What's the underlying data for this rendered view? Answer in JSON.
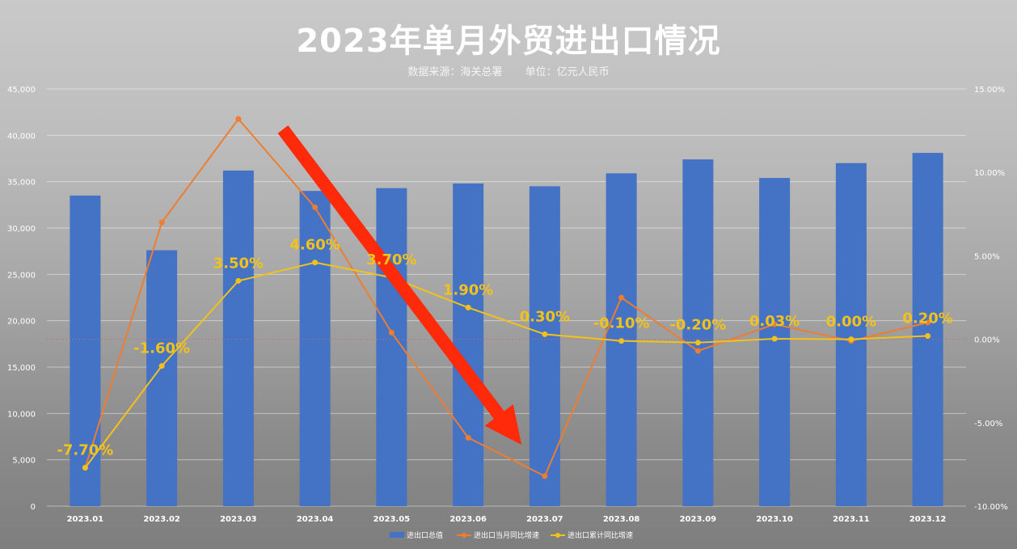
{
  "title": "2023年单月外贸进出口情况",
  "subtitle": {
    "source": "数据来源：海关总署",
    "unit": "单位：亿元人民币"
  },
  "colors": {
    "bar": "#4472c4",
    "monthly_line": "#ed7d31",
    "cumulative_line": "#f2c21b",
    "arrow": "#ff2a0a",
    "zero_line": "#e06060"
  },
  "chart_data": {
    "type": "bar",
    "categories": [
      "2023.01",
      "2023.02",
      "2023.03",
      "2023.04",
      "2023.05",
      "2023.06",
      "2023.07",
      "2023.08",
      "2023.09",
      "2023.10",
      "2023.11",
      "2023.12"
    ],
    "series": [
      {
        "name": "进出口总值",
        "type": "bar",
        "axis": "left",
        "values": [
          33500,
          27600,
          36200,
          34000,
          34300,
          34800,
          34500,
          35900,
          37400,
          35400,
          37000,
          38100
        ]
      },
      {
        "name": "进出口当月同比增速",
        "type": "line",
        "axis": "right",
        "values": [
          -7.7,
          7.0,
          13.2,
          7.9,
          0.4,
          -5.9,
          -8.2,
          2.5,
          -0.7,
          0.9,
          -0.1,
          1.0
        ]
      },
      {
        "name": "进出口累计同比增速",
        "type": "line",
        "axis": "right",
        "values": [
          -7.7,
          -1.6,
          3.5,
          4.6,
          3.7,
          1.9,
          0.3,
          -0.1,
          -0.2,
          0.03,
          0.0,
          0.2
        ],
        "labels": [
          "-7.70%",
          "-1.60%",
          "3.50%",
          "4.60%",
          "3.70%",
          "1.90%",
          "0.30%",
          "-0.10%",
          "-0.20%",
          "0.03%",
          "0.00%",
          "0.20%"
        ]
      }
    ],
    "y_left": {
      "min": 0,
      "max": 45000,
      "step": 5000,
      "ticks": [
        "0",
        "5,000",
        "10,000",
        "15,000",
        "20,000",
        "25,000",
        "30,000",
        "35,000",
        "40,000",
        "45,000"
      ]
    },
    "y_right": {
      "min": -10,
      "max": 15,
      "step": 5,
      "ticks": [
        "-10.00%",
        "-5.00%",
        "0.00%",
        "5.00%",
        "10.00%",
        "15.00%"
      ]
    },
    "grid": true,
    "legend": "bottom"
  }
}
